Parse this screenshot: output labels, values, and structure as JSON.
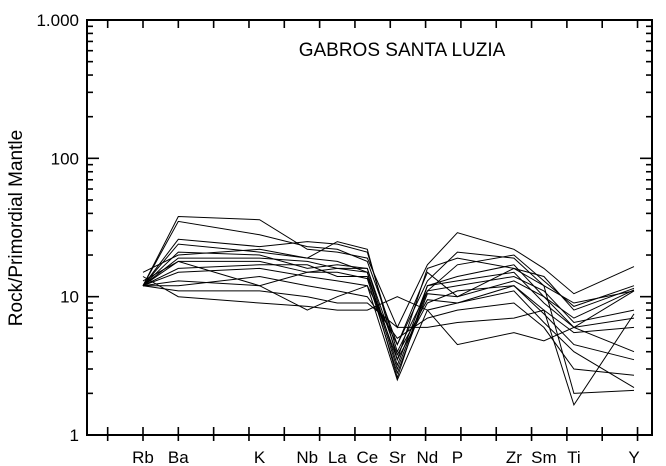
{
  "chart_data": {
    "type": "line",
    "title": "GABROS SANTA LUZIA",
    "xlabel": "",
    "ylabel": "Rock/Primordial Mantle",
    "yscale": "log",
    "ylim": [
      1,
      1000
    ],
    "y_ticks": [
      {
        "value": 1,
        "label": "1"
      },
      {
        "value": 10,
        "label": "10"
      },
      {
        "value": 100,
        "label": "100"
      },
      {
        "value": 1000,
        "label": "1.000"
      }
    ],
    "categories": [
      "Rb",
      "Ba",
      "K",
      "Nb",
      "La",
      "Ce",
      "Sr",
      "Nd",
      "P",
      "Zr",
      "Sm",
      "Ti",
      "Y"
    ],
    "category_positions": [
      0,
      1,
      3.3,
      4.65,
      5.5,
      6.35,
      7.2,
      8.05,
      8.9,
      10.5,
      11.35,
      12.2,
      13.9
    ],
    "grid": false,
    "legend": "none",
    "series": [
      {
        "values": [
          12,
          38,
          36,
          22,
          21,
          19,
          6,
          17,
          29,
          22,
          16,
          10.5,
          16.5
        ]
      },
      {
        "values": [
          12,
          35,
          28,
          23,
          22,
          18,
          4.5,
          13,
          21,
          19,
          12,
          9,
          11
        ]
      },
      {
        "values": [
          12,
          26,
          23,
          25,
          24,
          21,
          4,
          11,
          17,
          20,
          13,
          8.5,
          12
        ]
      },
      {
        "values": [
          12,
          24,
          21,
          19,
          25,
          22,
          3.5,
          16,
          19,
          16,
          14,
          8,
          11.5
        ]
      },
      {
        "values": [
          12,
          21,
          20,
          16,
          17,
          16,
          3.2,
          12,
          13,
          15,
          9,
          6,
          11
        ]
      },
      {
        "values": [
          12,
          19,
          19,
          18,
          16,
          15,
          3,
          11,
          12,
          14,
          11,
          6.5,
          8
        ]
      },
      {
        "values": [
          12,
          18,
          18,
          15,
          15,
          13.5,
          2.8,
          10.5,
          10,
          13,
          10,
          6,
          7
        ]
      },
      {
        "values": [
          12,
          16,
          17,
          17,
          14,
          14,
          3.5,
          9,
          11,
          12,
          8,
          5.5,
          6
        ]
      },
      {
        "values": [
          12,
          15,
          16,
          14,
          13,
          12,
          2.5,
          8,
          9,
          12,
          7.5,
          4.5,
          3.5
        ]
      },
      {
        "values": [
          12,
          13,
          12,
          8,
          10,
          12,
          4.5,
          15,
          10,
          16,
          12,
          2,
          2.1
        ]
      },
      {
        "values": [
          12,
          12,
          14,
          12,
          11,
          10,
          5,
          7,
          8,
          9,
          6,
          3,
          2.7
        ]
      },
      {
        "values": [
          12,
          11,
          11,
          10,
          9,
          9,
          6,
          6,
          6.5,
          7,
          8,
          1.65,
          7.5
        ]
      },
      {
        "values": [
          14,
          10,
          9,
          8.5,
          8,
          8,
          10,
          8,
          4.5,
          5.5,
          4.8,
          6,
          4
        ]
      },
      {
        "values": [
          15,
          20,
          22,
          19,
          18,
          15,
          2.6,
          12,
          14,
          17,
          10,
          7,
          11.2
        ]
      },
      {
        "values": [
          13,
          18,
          12,
          15,
          16,
          16,
          3.8,
          9.5,
          9,
          11,
          6.5,
          4,
          2.2
        ]
      }
    ]
  }
}
